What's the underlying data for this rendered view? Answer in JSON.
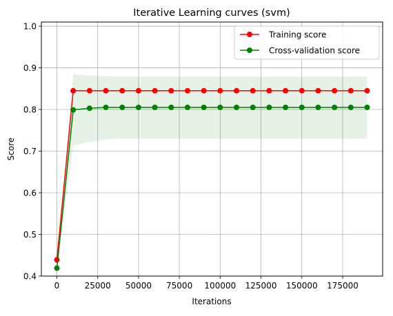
{
  "chart_data": {
    "type": "line",
    "title": "Iterative Learning curves (svm)",
    "xlabel": "Iterations",
    "ylabel": "Score",
    "xlim": [
      -9500,
      199500
    ],
    "ylim": [
      0.4,
      1.01
    ],
    "x_ticks": [
      {
        "value": 0,
        "label": "0"
      },
      {
        "value": 25000,
        "label": "25000"
      },
      {
        "value": 50000,
        "label": "50000"
      },
      {
        "value": 75000,
        "label": "75000"
      },
      {
        "value": 100000,
        "label": "100000"
      },
      {
        "value": 125000,
        "label": "125000"
      },
      {
        "value": 150000,
        "label": "150000"
      },
      {
        "value": 175000,
        "label": "175000"
      }
    ],
    "y_ticks": [
      {
        "value": 0.4,
        "label": "0.4"
      },
      {
        "value": 0.5,
        "label": "0.5"
      },
      {
        "value": 0.6,
        "label": "0.6"
      },
      {
        "value": 0.7,
        "label": "0.7"
      },
      {
        "value": 0.8,
        "label": "0.8"
      },
      {
        "value": 0.9,
        "label": "0.9"
      },
      {
        "value": 1.0,
        "label": "1.0"
      }
    ],
    "grid": true,
    "legend_position": "top-right",
    "x": [
      0,
      10000,
      20000,
      30000,
      40000,
      50000,
      60000,
      70000,
      80000,
      90000,
      100000,
      110000,
      120000,
      130000,
      140000,
      150000,
      160000,
      170000,
      180000,
      190000
    ],
    "series": [
      {
        "name": "Training score",
        "color": "#ff0000",
        "values": [
          0.439,
          0.845,
          0.845,
          0.845,
          0.845,
          0.845,
          0.845,
          0.845,
          0.845,
          0.845,
          0.845,
          0.845,
          0.845,
          0.845,
          0.845,
          0.845,
          0.845,
          0.845,
          0.845,
          0.845
        ],
        "band_low": [
          0.439,
          0.845,
          0.845,
          0.845,
          0.845,
          0.845,
          0.845,
          0.845,
          0.845,
          0.845,
          0.845,
          0.845,
          0.845,
          0.845,
          0.845,
          0.845,
          0.845,
          0.845,
          0.845,
          0.845
        ],
        "band_high": [
          0.439,
          0.845,
          0.845,
          0.845,
          0.845,
          0.845,
          0.845,
          0.845,
          0.845,
          0.845,
          0.845,
          0.845,
          0.845,
          0.845,
          0.845,
          0.845,
          0.845,
          0.845,
          0.845,
          0.845
        ]
      },
      {
        "name": "Cross-validation score",
        "color": "#008000",
        "values": [
          0.419,
          0.799,
          0.803,
          0.805,
          0.805,
          0.805,
          0.805,
          0.805,
          0.805,
          0.805,
          0.805,
          0.805,
          0.805,
          0.805,
          0.805,
          0.805,
          0.805,
          0.805,
          0.805,
          0.805
        ],
        "band_low": [
          0.419,
          0.713,
          0.722,
          0.728,
          0.73,
          0.73,
          0.73,
          0.73,
          0.73,
          0.73,
          0.73,
          0.73,
          0.73,
          0.73,
          0.73,
          0.73,
          0.73,
          0.73,
          0.73,
          0.73
        ],
        "band_high": [
          0.419,
          0.885,
          0.882,
          0.88,
          0.879,
          0.879,
          0.879,
          0.879,
          0.879,
          0.879,
          0.879,
          0.879,
          0.879,
          0.879,
          0.879,
          0.879,
          0.879,
          0.879,
          0.879,
          0.879
        ]
      }
    ]
  }
}
